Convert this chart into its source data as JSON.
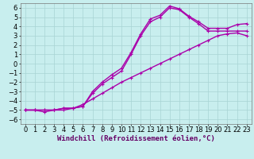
{
  "xlabel": "Windchill (Refroidissement éolien,°C)",
  "bg_color": "#c8eeee",
  "grid_color": "#a8d4d4",
  "line_color": "#aa00aa",
  "xlim": [
    -0.5,
    23.5
  ],
  "ylim": [
    -6.5,
    6.5
  ],
  "xticks": [
    0,
    1,
    2,
    3,
    4,
    5,
    6,
    7,
    8,
    9,
    10,
    11,
    12,
    13,
    14,
    15,
    16,
    17,
    18,
    19,
    20,
    21,
    22,
    23
  ],
  "yticks": [
    -6,
    -5,
    -4,
    -3,
    -2,
    -1,
    0,
    1,
    2,
    3,
    4,
    5,
    6
  ],
  "line1_x": [
    0,
    1,
    2,
    3,
    4,
    5,
    6,
    7,
    8,
    9,
    10,
    11,
    12,
    13,
    14,
    15,
    16,
    17,
    18,
    19,
    20,
    21,
    22,
    23
  ],
  "line1_y": [
    -5,
    -5,
    -5,
    -5,
    -5,
    -4.8,
    -4.4,
    -3.8,
    -3.2,
    -2.6,
    -2.0,
    -1.5,
    -1.0,
    -0.5,
    0.0,
    0.5,
    1.0,
    1.5,
    2.0,
    2.5,
    3.0,
    3.2,
    3.3,
    3.0
  ],
  "line2_x": [
    0,
    1,
    2,
    3,
    4,
    5,
    6,
    7,
    8,
    9,
    10,
    11,
    12,
    13,
    14,
    15,
    16,
    17,
    18,
    19,
    20,
    21,
    22,
    23
  ],
  "line2_y": [
    -5,
    -5,
    -5.2,
    -5,
    -4.8,
    -4.8,
    -4.6,
    -3.2,
    -2.2,
    -1.5,
    -0.8,
    1.0,
    3.0,
    4.5,
    5.0,
    6.0,
    5.8,
    5.0,
    4.3,
    3.5,
    3.5,
    3.5,
    3.5,
    3.5
  ],
  "line3_x": [
    0,
    1,
    2,
    3,
    4,
    5,
    6,
    7,
    8,
    9,
    10,
    11,
    12,
    13,
    14,
    15,
    16,
    17,
    18,
    19,
    20,
    21,
    22,
    23
  ],
  "line3_y": [
    -5,
    -5,
    -5,
    -5,
    -4.8,
    -4.8,
    -4.6,
    -3.0,
    -2.0,
    -1.2,
    -0.5,
    1.2,
    3.2,
    4.8,
    5.2,
    6.2,
    5.9,
    5.1,
    4.5,
    3.8,
    3.8,
    3.8,
    4.2,
    4.3
  ],
  "xlabel_fontsize": 6.5,
  "tick_fontsize": 6,
  "line_width": 1.0,
  "marker_size": 2.5
}
